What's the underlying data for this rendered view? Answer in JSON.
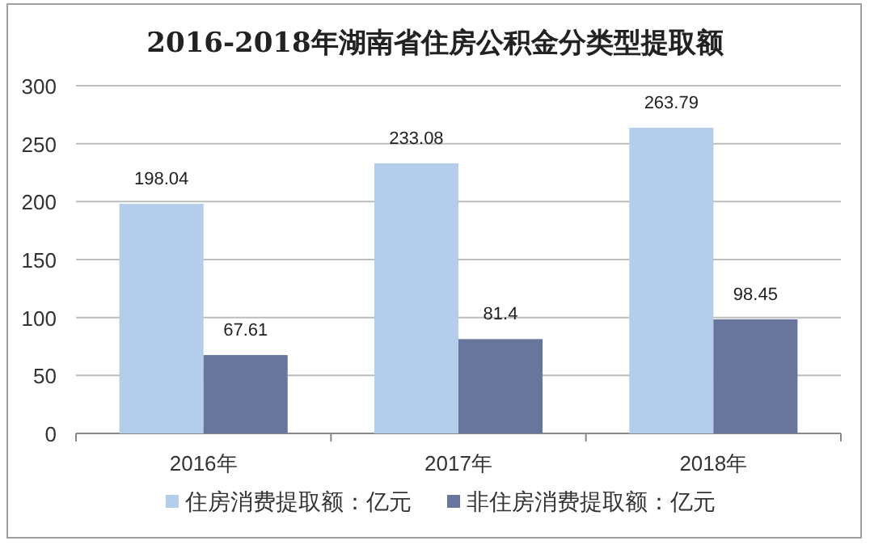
{
  "chart_data": {
    "type": "bar",
    "title": "2016-2018年湖南省住房公积金分类型提取额",
    "categories": [
      "2016年",
      "2017年",
      "2018年"
    ],
    "series": [
      {
        "name": "住房消费提取额：亿元",
        "color": "#b4cdeb",
        "values": [
          198.04,
          233.08,
          263.79
        ]
      },
      {
        "name": "非住房消费提取额：亿元",
        "color": "#68759c",
        "values": [
          67.61,
          81.4,
          98.45
        ]
      }
    ],
    "ylim": [
      0,
      300
    ],
    "yticks": [
      0,
      50,
      100,
      150,
      200,
      250,
      300
    ],
    "grid": "y",
    "legend": "bottom",
    "data_labels": true
  }
}
